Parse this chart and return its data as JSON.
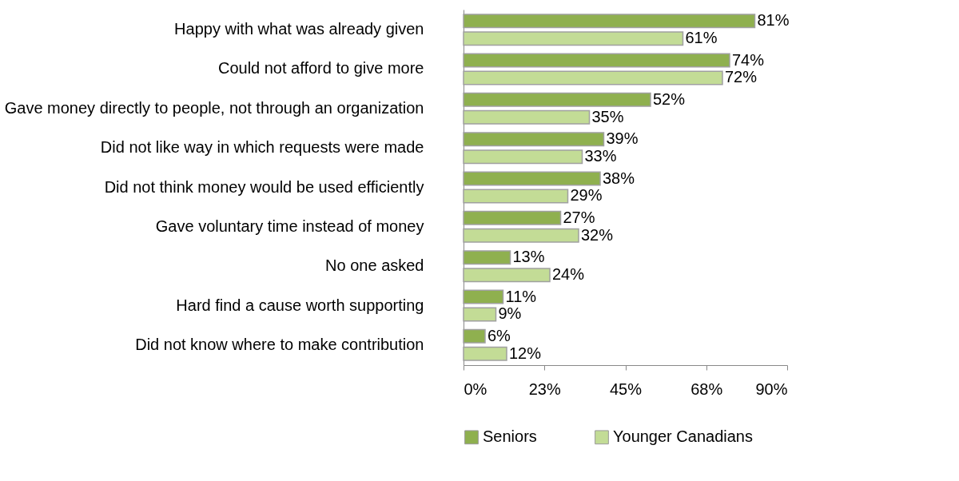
{
  "chart_data": {
    "type": "bar",
    "orientation": "horizontal",
    "categories": [
      "Happy with what was already given",
      "Could not afford to give more",
      "Gave money directly to people, not through an organization",
      "Did not like way in which requests were made",
      "Did not think money would be used efficiently",
      "Gave voluntary time instead of money",
      "No one asked",
      "Hard find a cause worth supporting",
      "Did not know where to make contribution"
    ],
    "series": [
      {
        "name": "Seniors",
        "color": "#8fb04f",
        "values": [
          81,
          74,
          52,
          39,
          38,
          27,
          13,
          11,
          6
        ],
        "value_labels": [
          "81%",
          "74%",
          "52%",
          "39%",
          "38%",
          "27%",
          "13%",
          "11%",
          "6%"
        ]
      },
      {
        "name": "Younger Canadians",
        "color": "#c3dc96",
        "values": [
          61,
          72,
          35,
          33,
          29,
          32,
          24,
          9,
          12
        ],
        "value_labels": [
          "61%",
          "72%",
          "35%",
          "33%",
          "29%",
          "32%",
          "24%",
          "9%",
          "12%"
        ]
      }
    ],
    "xlim": [
      0,
      90
    ],
    "xticks": [
      {
        "value": 0,
        "label": "0%"
      },
      {
        "value": 22.5,
        "label": "23%"
      },
      {
        "value": 45,
        "label": "45%"
      },
      {
        "value": 67.5,
        "label": "68%"
      },
      {
        "value": 90,
        "label": "90%"
      }
    ],
    "grid": false,
    "legend": "bottom"
  }
}
